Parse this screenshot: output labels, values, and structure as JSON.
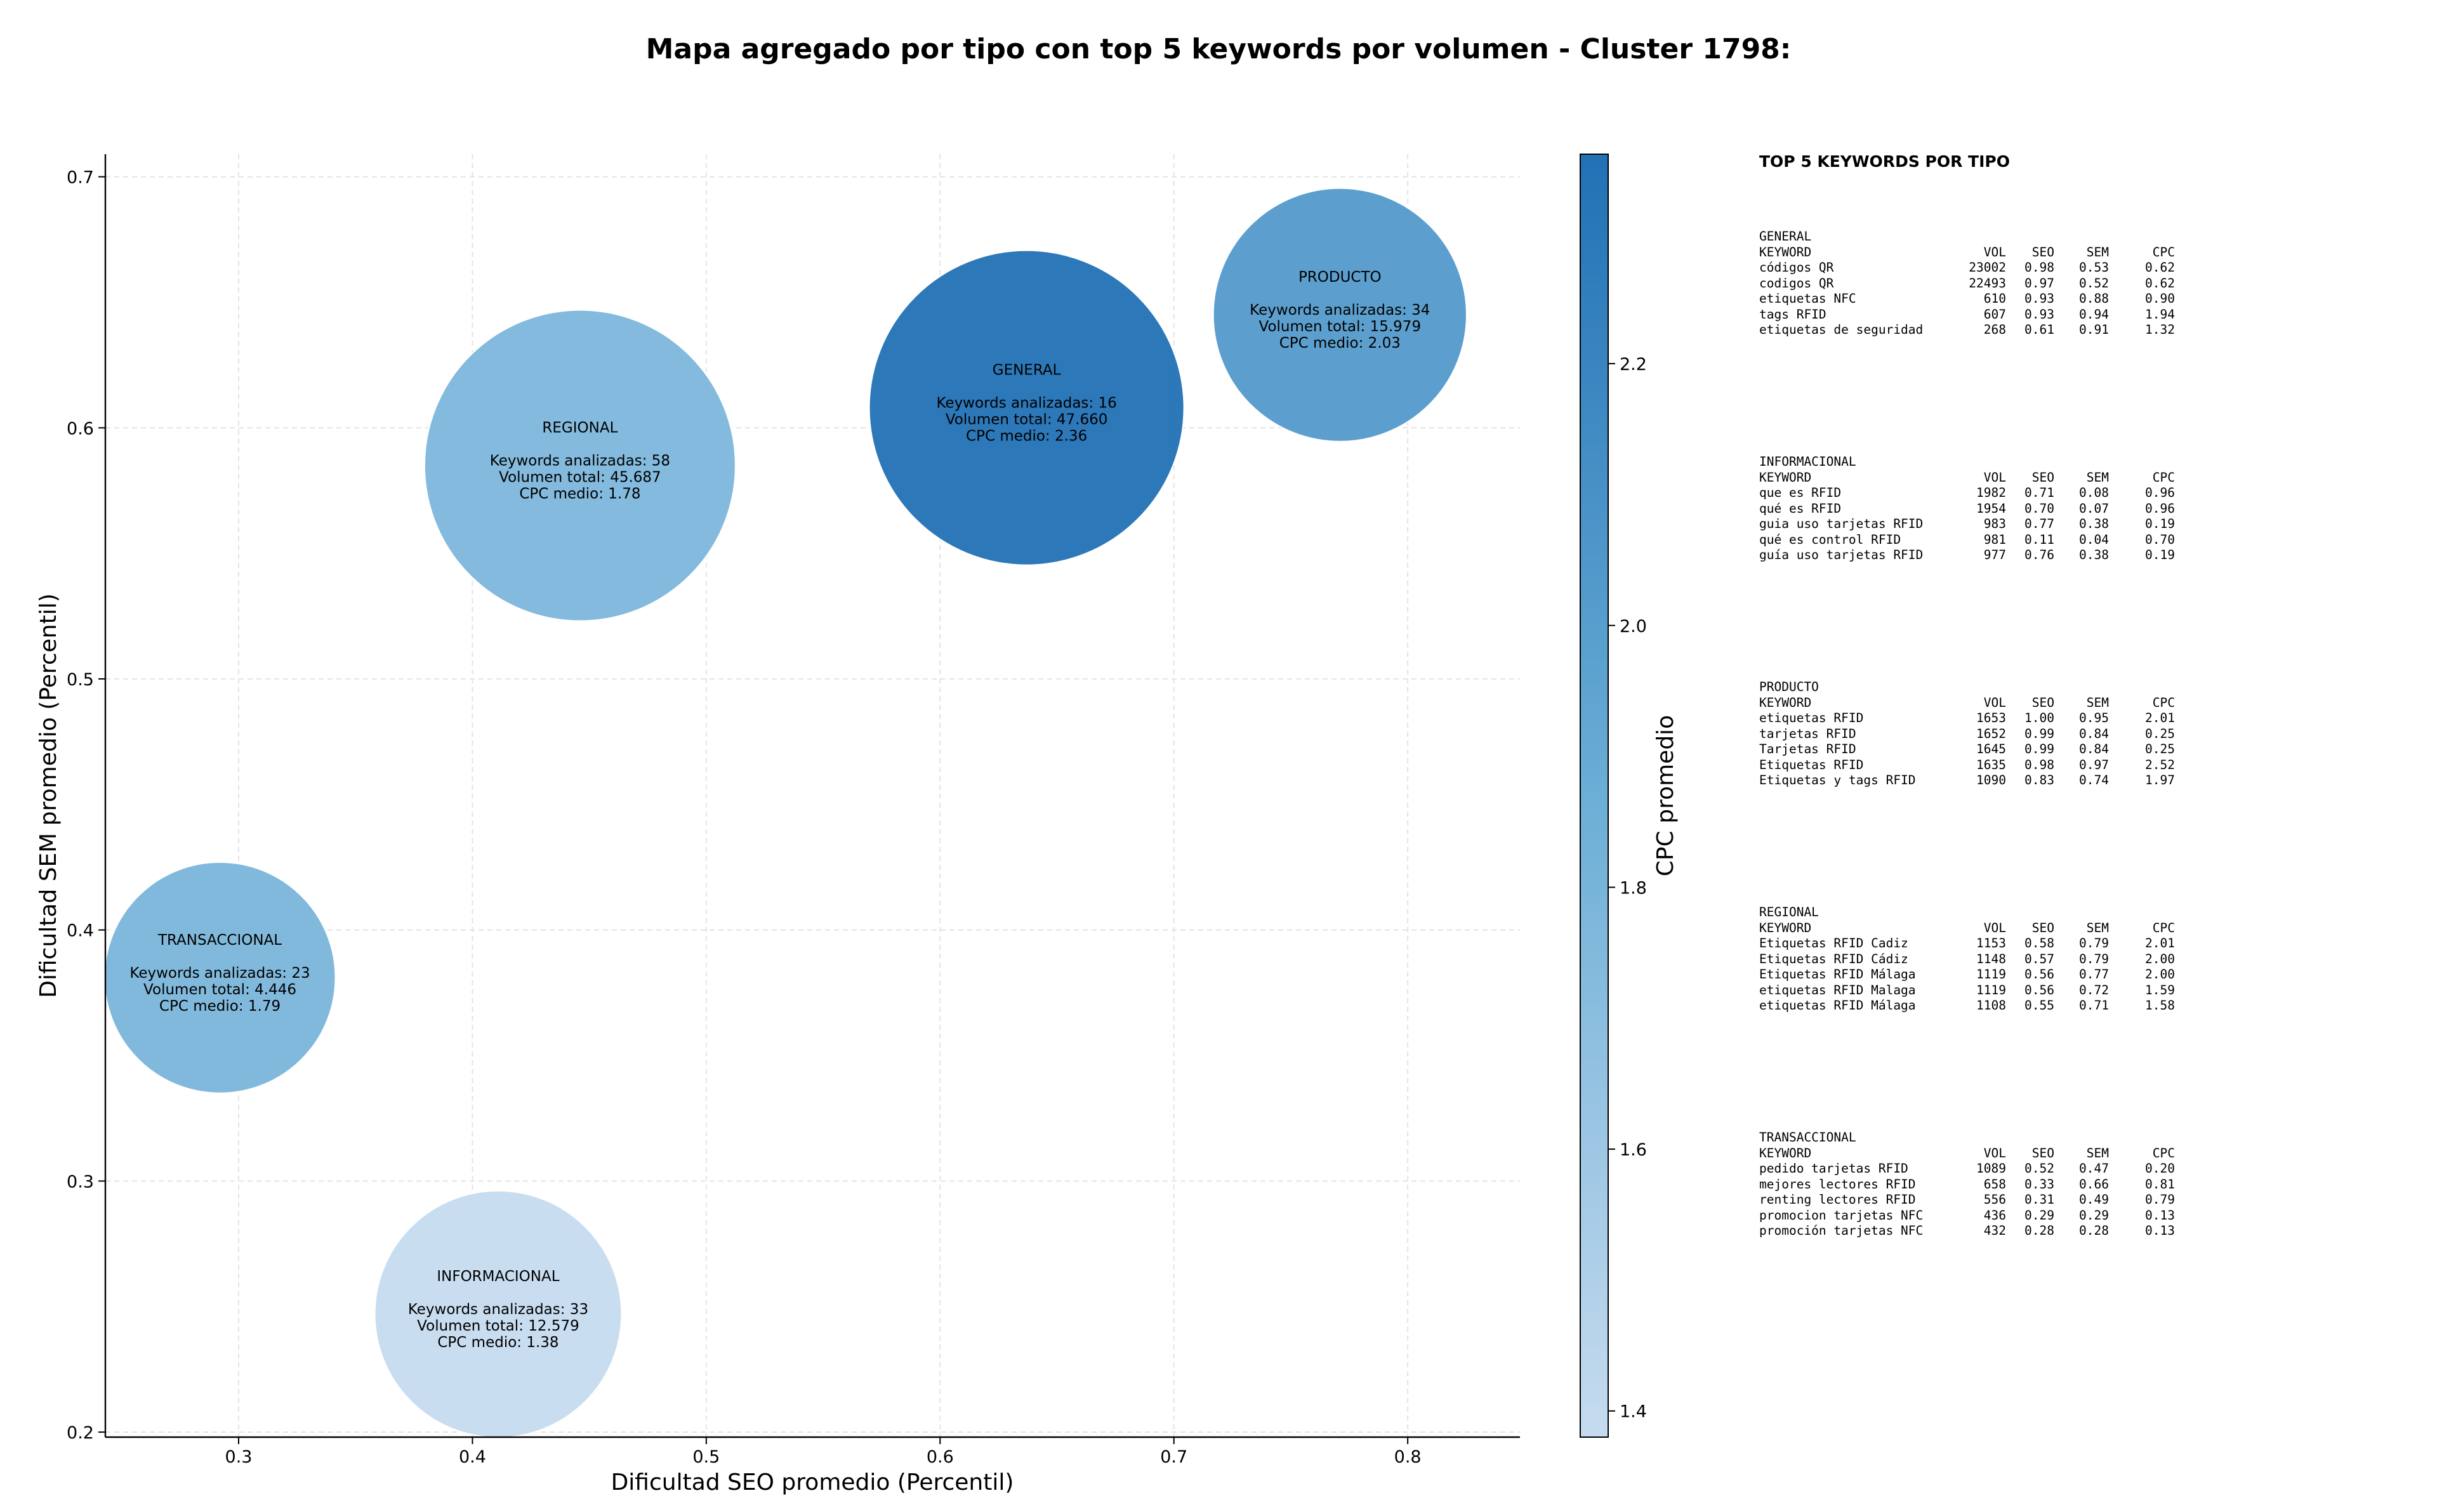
{
  "chart_data": {
    "type": "scatter",
    "title": "Mapa agregado por tipo con top 5 keywords por volumen - Cluster 1798:",
    "xlabel": "Dificultad SEO promedio (Percentil)",
    "ylabel": "Dificultad SEM promedio (Percentil)",
    "xlim": [
      0.243,
      0.848
    ],
    "ylim": [
      0.198,
      0.709
    ],
    "xticks": [
      0.3,
      0.4,
      0.5,
      0.6,
      0.7,
      0.8
    ],
    "yticks": [
      0.2,
      0.3,
      0.4,
      0.5,
      0.6,
      0.7
    ],
    "grid": true,
    "colorbar": {
      "label": "CPC promedio",
      "min": 1.38,
      "max": 2.36,
      "ticks": [
        1.4,
        1.6,
        1.8,
        2.0,
        2.2
      ],
      "colors": [
        "#c6dbef",
        "#2171b5"
      ]
    },
    "bubble_label_templates": {
      "count": "Keywords analizadas: ",
      "volume": "Volumen total: ",
      "cpc": "CPC medio: "
    },
    "bubbles": [
      {
        "name": "GENERAL",
        "x": 0.637,
        "y": 0.608,
        "keywords": 16,
        "volume": "47.660",
        "cpc": "2.36"
      },
      {
        "name": "INFORMACIONAL",
        "x": 0.411,
        "y": 0.247,
        "keywords": 33,
        "volume": "12.579",
        "cpc": "1.38"
      },
      {
        "name": "PRODUCTO",
        "x": 0.771,
        "y": 0.645,
        "keywords": 34,
        "volume": "15.979",
        "cpc": "2.03"
      },
      {
        "name": "REGIONAL",
        "x": 0.446,
        "y": 0.585,
        "keywords": 58,
        "volume": "45.687",
        "cpc": "1.78"
      },
      {
        "name": "TRANSACCIONAL",
        "x": 0.292,
        "y": 0.381,
        "keywords": 23,
        "volume": "4.446",
        "cpc": "1.79"
      }
    ]
  },
  "side_panel": {
    "title": "TOP 5 KEYWORDS POR TIPO",
    "columns": [
      "KEYWORD",
      "VOL",
      "SEO",
      "SEM",
      "CPC"
    ],
    "groups": [
      {
        "type": "GENERAL",
        "rows": [
          [
            "códigos QR",
            "23002",
            "0.98",
            "0.53",
            "0.62"
          ],
          [
            "codigos QR",
            "22493",
            "0.97",
            "0.52",
            "0.62"
          ],
          [
            "etiquetas NFC",
            "610",
            "0.93",
            "0.88",
            "0.90"
          ],
          [
            "tags RFID",
            "607",
            "0.93",
            "0.94",
            "1.94"
          ],
          [
            "etiquetas de seguridad",
            "268",
            "0.61",
            "0.91",
            "1.32"
          ]
        ]
      },
      {
        "type": "INFORMACIONAL",
        "rows": [
          [
            "que es RFID",
            "1982",
            "0.71",
            "0.08",
            "0.96"
          ],
          [
            "qué es RFID",
            "1954",
            "0.70",
            "0.07",
            "0.96"
          ],
          [
            "guia uso tarjetas RFID",
            "983",
            "0.77",
            "0.38",
            "0.19"
          ],
          [
            "qué es control RFID",
            "981",
            "0.11",
            "0.04",
            "0.70"
          ],
          [
            "guía uso tarjetas RFID",
            "977",
            "0.76",
            "0.38",
            "0.19"
          ]
        ]
      },
      {
        "type": "PRODUCTO",
        "rows": [
          [
            "etiquetas RFID",
            "1653",
            "1.00",
            "0.95",
            "2.01"
          ],
          [
            "tarjetas RFID",
            "1652",
            "0.99",
            "0.84",
            "0.25"
          ],
          [
            "Tarjetas RFID",
            "1645",
            "0.99",
            "0.84",
            "0.25"
          ],
          [
            "Etiquetas RFID",
            "1635",
            "0.98",
            "0.97",
            "2.52"
          ],
          [
            "Etiquetas y tags RFID",
            "1090",
            "0.83",
            "0.74",
            "1.97"
          ]
        ]
      },
      {
        "type": "REGIONAL",
        "rows": [
          [
            "Etiquetas RFID Cadiz",
            "1153",
            "0.58",
            "0.79",
            "2.01"
          ],
          [
            "Etiquetas RFID Cádiz",
            "1148",
            "0.57",
            "0.79",
            "2.00"
          ],
          [
            "Etiquetas RFID Málaga",
            "1119",
            "0.56",
            "0.77",
            "2.00"
          ],
          [
            "etiquetas RFID Malaga",
            "1119",
            "0.56",
            "0.72",
            "1.59"
          ],
          [
            "etiquetas RFID Málaga",
            "1108",
            "0.55",
            "0.71",
            "1.58"
          ]
        ]
      },
      {
        "type": "TRANSACCIONAL",
        "rows": [
          [
            "pedido tarjetas RFID",
            "1089",
            "0.52",
            "0.47",
            "0.20"
          ],
          [
            "mejores lectores RFID",
            "658",
            "0.33",
            "0.66",
            "0.81"
          ],
          [
            "renting lectores RFID",
            "556",
            "0.31",
            "0.49",
            "0.79"
          ],
          [
            "promocion tarjetas NFC",
            "436",
            "0.29",
            "0.29",
            "0.13"
          ],
          [
            "promoción tarjetas NFC",
            "432",
            "0.28",
            "0.28",
            "0.13"
          ]
        ]
      }
    ]
  }
}
